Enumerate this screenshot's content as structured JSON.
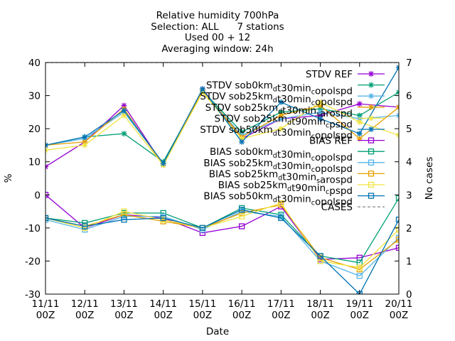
{
  "chart_data": {
    "type": "line",
    "title": "Relative humidity 700hPa",
    "subtitles": [
      "Selection: ALL      7 stations",
      "Used 00 + 12",
      "Averaging window: 24h"
    ],
    "xlabel": "Date",
    "ylabel": "%",
    "y2label": "No cases",
    "categories": [
      "11/11 00Z",
      "12/11 00Z",
      "13/11 00Z",
      "14/11 00Z",
      "15/11 00Z",
      "16/11 00Z",
      "17/11 00Z",
      "18/11 00Z",
      "19/11 00Z",
      "20/11 00Z"
    ],
    "category_lines": [
      [
        "11/11",
        "00Z"
      ],
      [
        "12/11",
        "00Z"
      ],
      [
        "13/11",
        "00Z"
      ],
      [
        "14/11",
        "00Z"
      ],
      [
        "15/11",
        "00Z"
      ],
      [
        "16/11",
        "00Z"
      ],
      [
        "17/11",
        "00Z"
      ],
      [
        "18/11",
        "00Z"
      ],
      [
        "19/11",
        "00Z"
      ],
      [
        "20/11",
        "00Z"
      ]
    ],
    "ylim": [
      -30,
      40
    ],
    "yticks": [
      -30,
      -20,
      -10,
      0,
      10,
      20,
      30,
      40
    ],
    "y2lim": [
      0,
      7
    ],
    "y2ticks": [
      0,
      1,
      2,
      3,
      4,
      5,
      6,
      7
    ],
    "grid": false,
    "legend_position": "top-right",
    "series": [
      {
        "name": "STDV REF",
        "sub": "",
        "color": "#9400d3",
        "marker": "star",
        "axis": "y",
        "values": [
          8.5,
          16,
          27,
          9,
          32,
          17,
          23,
          24,
          27.5,
          26.5
        ]
      },
      {
        "name": "STDV sob0km",
        "sub": "d",
        "name2": "t30min",
        "sub2": "c",
        "name3": "opolspd",
        "color": "#009e73",
        "marker": "star",
        "axis": "y",
        "values": [
          15,
          17.5,
          18.5,
          10,
          31.5,
          19,
          25,
          26,
          24,
          31
        ]
      },
      {
        "name": "STDV sob25km",
        "sub": "d",
        "name2": "t30min",
        "sub2": "c",
        "name3": "opolspd",
        "color": "#56b4e9",
        "marker": "star",
        "axis": "y",
        "values": [
          15,
          17,
          25,
          9.5,
          31.5,
          18,
          23,
          25,
          23,
          24
        ]
      },
      {
        "name": "STDV sob25km",
        "sub": "d",
        "name2": "t30min",
        "sub2": "s",
        "name3": "arospd",
        "color": "#e69f00",
        "marker": "star",
        "axis": "y",
        "values": [
          15,
          16,
          26,
          9,
          31.5,
          17.5,
          24,
          27,
          17,
          26.5
        ]
      },
      {
        "name": "STDV sob25km",
        "sub": "d",
        "name2": "t90min",
        "sub2": "c",
        "name3": "pspd",
        "color": "#f0e442",
        "marker": "star",
        "axis": "y",
        "values": [
          13.5,
          15,
          24,
          9,
          31,
          17,
          20,
          28,
          22,
          18
        ]
      },
      {
        "name": "STDV sob50km",
        "sub": "d",
        "name2": "t30min",
        "sub2": "c",
        "name3": "opolspd",
        "color": "#0072b2",
        "marker": "star",
        "axis": "y",
        "values": [
          15,
          17.5,
          25.5,
          9.5,
          32,
          16,
          28,
          23,
          18.5,
          38.5
        ]
      },
      {
        "name": "BIAS REF",
        "sub": "",
        "color": "#9400d3",
        "marker": "square",
        "axis": "y",
        "values": [
          0,
          -10,
          -6,
          -7,
          -11.5,
          -9.5,
          -3.5,
          -19.5,
          -19,
          -16
        ]
      },
      {
        "name": "BIAS sob0km",
        "sub": "d",
        "name2": "t30min",
        "sub2": "c",
        "name3": "opolspd",
        "color": "#009e73",
        "marker": "square",
        "axis": "y",
        "values": [
          -7,
          -8.5,
          -5.5,
          -5.5,
          -10,
          -4,
          -6,
          -18.5,
          -20.5,
          -1
        ]
      },
      {
        "name": "BIAS sob25km",
        "sub": "d",
        "name2": "t30min",
        "sub2": "c",
        "name3": "opolspd",
        "color": "#56b4e9",
        "marker": "square",
        "axis": "y",
        "values": [
          -7.5,
          -10.5,
          -6.5,
          -6.5,
          -10.5,
          -5,
          -6.5,
          -20,
          -24.5,
          -13
        ]
      },
      {
        "name": "BIAS sob25km",
        "sub": "d",
        "name2": "t30min",
        "sub2": "s",
        "name3": "arospd",
        "color": "#e69f00",
        "marker": "square",
        "axis": "y",
        "values": [
          -7,
          -9.5,
          -6,
          -8,
          -10,
          -5.5,
          -3,
          -19,
          -22.5,
          -13.5
        ]
      },
      {
        "name": "BIAS sob25km",
        "sub": "d",
        "name2": "t90min",
        "sub2": "c",
        "name3": "pspd",
        "color": "#f0e442",
        "marker": "square",
        "axis": "y",
        "values": [
          -7,
          -10,
          -5,
          -7.5,
          -10,
          -6.5,
          -2.5,
          -20,
          -22,
          -10.5
        ]
      },
      {
        "name": "BIAS sob50km",
        "sub": "d",
        "name2": "t30min",
        "sub2": "c",
        "name3": "opolspd",
        "color": "#0072b2",
        "marker": "square",
        "axis": "y",
        "values": [
          -7,
          -9.5,
          -7.5,
          -7,
          -10,
          -4.5,
          -7,
          -18.5,
          -30,
          -7.5
        ]
      },
      {
        "name": "CASES",
        "sub": "",
        "color": "#999999",
        "marker": "none",
        "dashed": true,
        "axis": "y2",
        "values": [
          7,
          7,
          7,
          7,
          7,
          7,
          7,
          7,
          7,
          7
        ]
      }
    ]
  }
}
